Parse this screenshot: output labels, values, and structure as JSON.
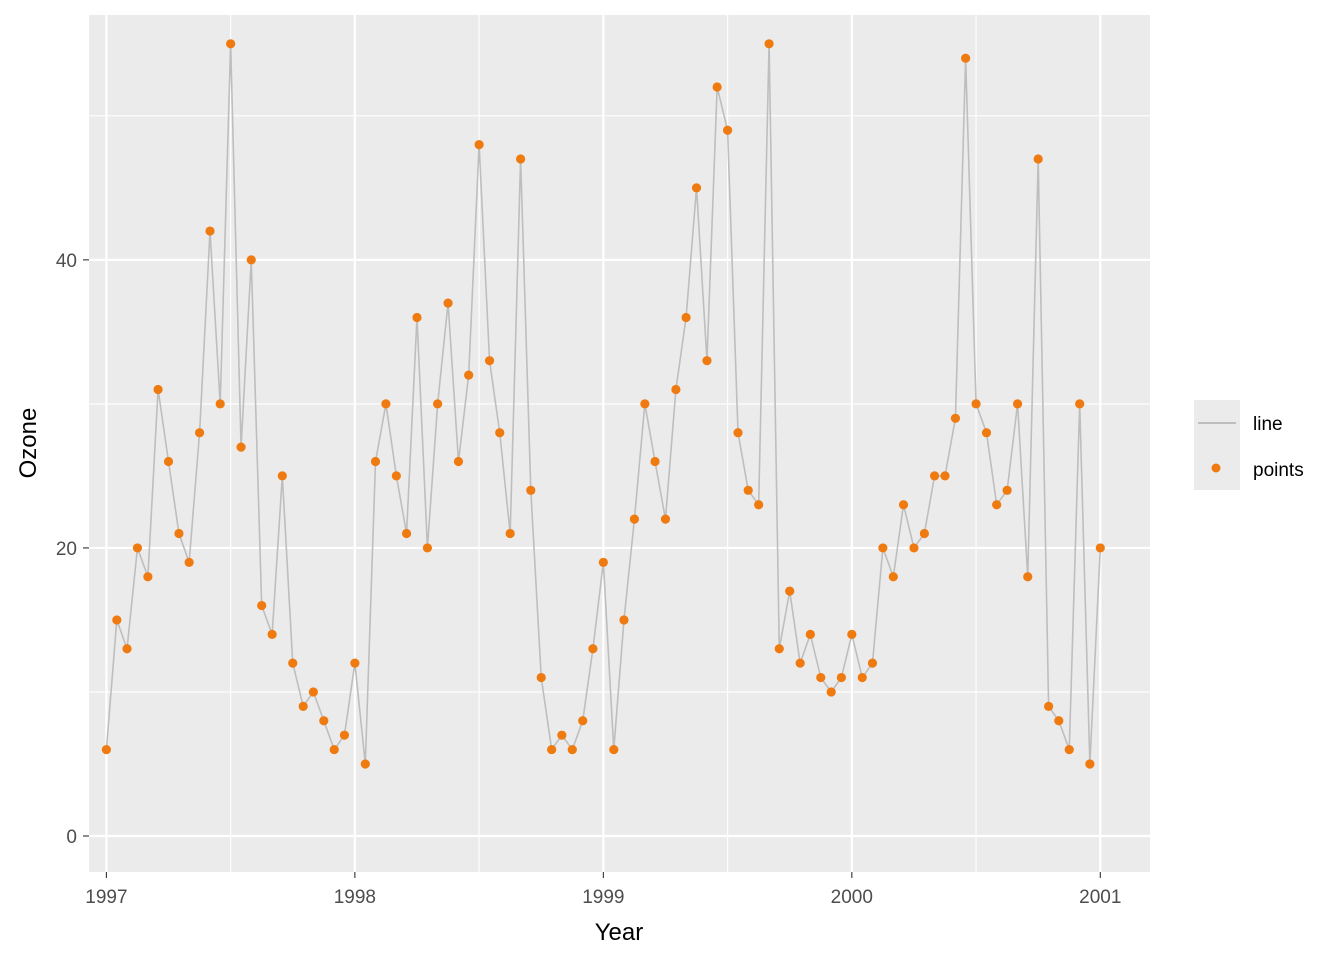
{
  "chart_data": {
    "type": "line",
    "title": "",
    "xlabel": "Year",
    "ylabel": "Ozone",
    "xlim": [
      1996.93,
      2001.2
    ],
    "ylim": [
      -2.5,
      57
    ],
    "x_ticks": [
      1997,
      1998,
      1999,
      2000,
      2001
    ],
    "x_tick_labels": [
      "1997",
      "1998",
      "1999",
      "2000",
      "2001"
    ],
    "y_ticks": [
      0,
      20,
      40
    ],
    "y_tick_labels": [
      "0",
      "20",
      "40"
    ],
    "grid": true,
    "legend": {
      "position": "right",
      "entries": [
        {
          "label": "line",
          "kind": "line",
          "color": "#bebebe"
        },
        {
          "label": "points",
          "kind": "point",
          "color": "#ef7a10"
        }
      ]
    },
    "colors": {
      "line": "#bebebe",
      "points": "#ef7a10",
      "panel": "#ebebeb",
      "grid": "#ffffff"
    },
    "x": [
      1997.0,
      1997.042,
      1997.083,
      1997.125,
      1997.167,
      1997.208,
      1997.25,
      1997.292,
      1997.333,
      1997.375,
      1997.417,
      1997.458,
      1997.5,
      1997.542,
      1997.583,
      1997.625,
      1997.667,
      1997.708,
      1997.75,
      1997.792,
      1997.833,
      1997.875,
      1997.917,
      1997.958,
      1998.0,
      1998.042,
      1998.083,
      1998.125,
      1998.167,
      1998.208,
      1998.25,
      1998.292,
      1998.333,
      1998.375,
      1998.417,
      1998.458,
      1998.5,
      1998.542,
      1998.583,
      1998.625,
      1998.667,
      1998.708,
      1998.75,
      1998.792,
      1998.833,
      1998.875,
      1998.917,
      1998.958,
      1999.0,
      1999.042,
      1999.083,
      1999.125,
      1999.167,
      1999.208,
      1999.25,
      1999.292,
      1999.333,
      1999.375,
      1999.417,
      1999.458,
      1999.5,
      1999.542,
      1999.583,
      1999.625,
      1999.667,
      1999.708,
      1999.75,
      1999.792,
      1999.833,
      1999.875,
      1999.917,
      1999.958,
      2000.0,
      2000.042,
      2000.083,
      2000.125,
      2000.167,
      2000.208,
      2000.25,
      2000.292,
      2000.333,
      2000.375,
      2000.417,
      2000.458,
      2000.5,
      2000.542,
      2000.583,
      2000.625,
      2000.667,
      2000.708,
      2000.75,
      2000.792,
      2000.833,
      2000.875,
      2000.917,
      2000.958,
      2001.0
    ],
    "series": [
      {
        "name": "line",
        "values": [
          6,
          15,
          13,
          20,
          18,
          31,
          26,
          21,
          19,
          28,
          42,
          30,
          55,
          27,
          40,
          16,
          14,
          25,
          12,
          9,
          10,
          8,
          6,
          7,
          12,
          5,
          26,
          30,
          25,
          21,
          36,
          20,
          30,
          37,
          26,
          32,
          48,
          33,
          28,
          21,
          47,
          24,
          11,
          6,
          7,
          6,
          8,
          13,
          19,
          6,
          15,
          22,
          30,
          26,
          22,
          31,
          36,
          45,
          33,
          52,
          49,
          28,
          24,
          23,
          55,
          13,
          17,
          12,
          14,
          11,
          10,
          11,
          14,
          11,
          12,
          20,
          18,
          23,
          20,
          21,
          25,
          25,
          29,
          54,
          30,
          28,
          23,
          24,
          30,
          18,
          47,
          9,
          8,
          6,
          30,
          5,
          20
        ]
      },
      {
        "name": "points",
        "values": [
          6,
          15,
          13,
          20,
          18,
          31,
          26,
          21,
          19,
          28,
          42,
          30,
          55,
          27,
          40,
          16,
          14,
          25,
          12,
          9,
          10,
          8,
          6,
          7,
          12,
          5,
          26,
          30,
          25,
          21,
          36,
          20,
          30,
          37,
          26,
          32,
          48,
          33,
          28,
          21,
          47,
          24,
          11,
          6,
          7,
          6,
          8,
          13,
          19,
          6,
          15,
          22,
          30,
          26,
          22,
          31,
          36,
          45,
          33,
          52,
          49,
          28,
          24,
          23,
          55,
          13,
          17,
          12,
          14,
          11,
          10,
          11,
          14,
          11,
          12,
          20,
          18,
          23,
          20,
          21,
          25,
          25,
          29,
          54,
          30,
          28,
          23,
          24,
          30,
          18,
          47,
          9,
          8,
          6,
          30,
          5,
          20
        ]
      }
    ]
  }
}
